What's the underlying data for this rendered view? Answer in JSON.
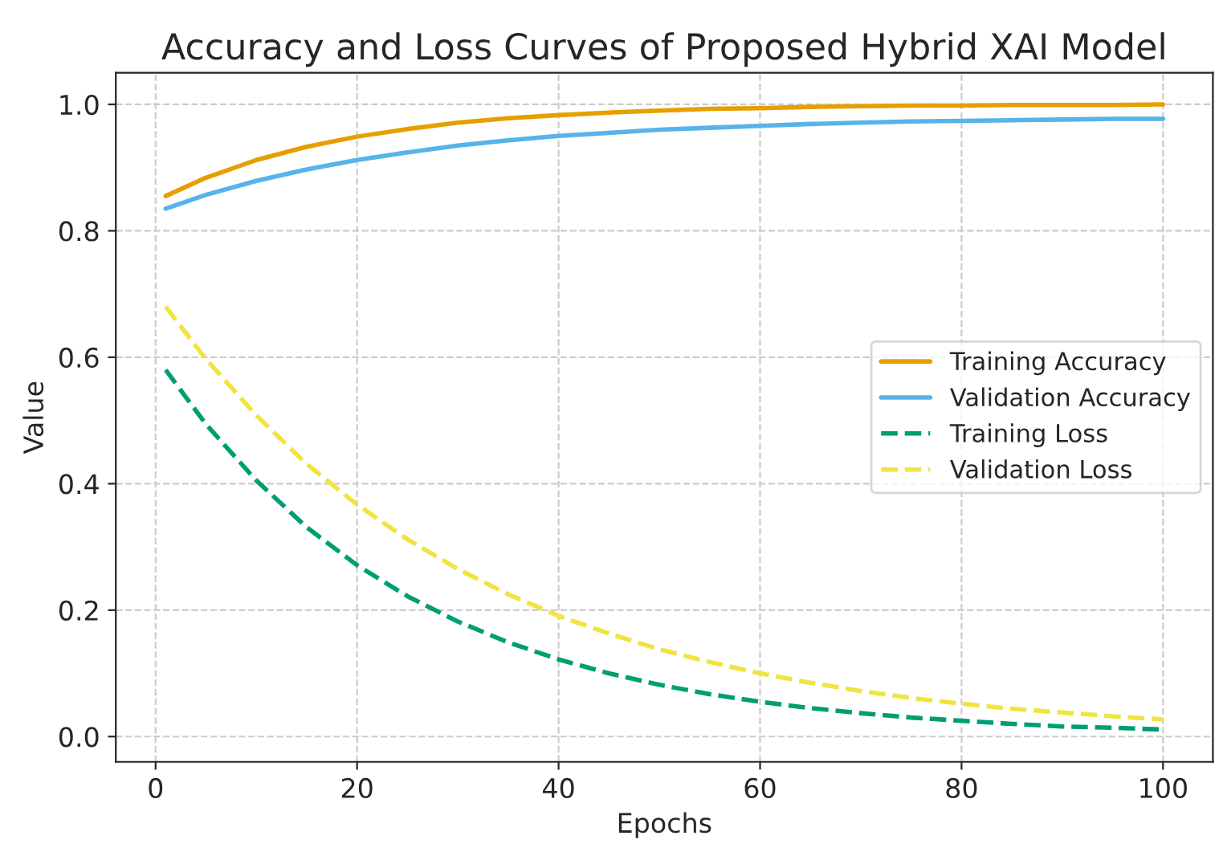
{
  "chart_data": {
    "type": "line",
    "title": "Accuracy and Loss Curves of Proposed Hybrid XAI Model",
    "xlabel": "Epochs",
    "ylabel": "Value",
    "x": [
      1,
      5,
      10,
      15,
      20,
      25,
      30,
      35,
      40,
      45,
      50,
      55,
      60,
      65,
      70,
      75,
      80,
      85,
      90,
      95,
      100
    ],
    "series": [
      {
        "name": "Training Accuracy",
        "color": "#e69f00",
        "line_style": "solid",
        "values": [
          0.855,
          0.884,
          0.912,
          0.933,
          0.949,
          0.961,
          0.971,
          0.978,
          0.983,
          0.987,
          0.99,
          0.993,
          0.994,
          0.996,
          0.997,
          0.998,
          0.998,
          0.999,
          0.999,
          0.999,
          1.0
        ]
      },
      {
        "name": "Validation Accuracy",
        "color": "#56b4e9",
        "line_style": "solid",
        "values": [
          0.835,
          0.857,
          0.879,
          0.897,
          0.912,
          0.924,
          0.935,
          0.943,
          0.95,
          0.955,
          0.96,
          0.963,
          0.966,
          0.969,
          0.971,
          0.973,
          0.974,
          0.975,
          0.976,
          0.977,
          0.977
        ]
      },
      {
        "name": "Training Loss",
        "color": "#009e73",
        "line_style": "dashed",
        "values": [
          0.58,
          0.494,
          0.405,
          0.331,
          0.271,
          0.222,
          0.182,
          0.149,
          0.122,
          0.1,
          0.082,
          0.067,
          0.055,
          0.045,
          0.037,
          0.03,
          0.025,
          0.02,
          0.016,
          0.014,
          0.011
        ]
      },
      {
        "name": "Validation Loss",
        "color": "#f0e442",
        "line_style": "dashed",
        "values": [
          0.68,
          0.597,
          0.508,
          0.431,
          0.367,
          0.312,
          0.265,
          0.225,
          0.191,
          0.163,
          0.138,
          0.118,
          0.1,
          0.085,
          0.072,
          0.061,
          0.052,
          0.044,
          0.038,
          0.032,
          0.027
        ]
      }
    ],
    "xlim": [
      -3.95,
      104.95
    ],
    "ylim": [
      -0.04,
      1.05
    ],
    "xticks": [
      0,
      20,
      40,
      60,
      80,
      100
    ],
    "yticks": [
      {
        "value": 0,
        "label": "0.0"
      },
      {
        "value": 0.2,
        "label": "0.2"
      },
      {
        "value": 0.4,
        "label": "0.4"
      },
      {
        "value": 0.6,
        "label": "0.6"
      },
      {
        "value": 0.8,
        "label": "0.8"
      },
      {
        "value": 1.0,
        "label": "1.0"
      }
    ],
    "grid": true,
    "legend": "center right",
    "marker": "none"
  }
}
